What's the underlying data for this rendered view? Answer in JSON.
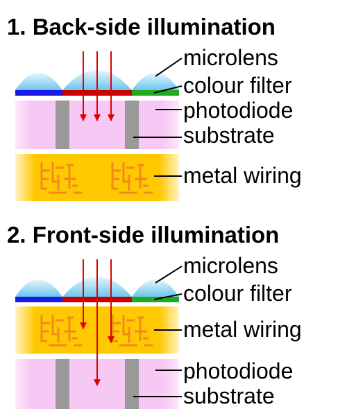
{
  "panels": [
    {
      "heading": "1. Back-side illumination",
      "labels": {
        "microlens": "microlens",
        "colour_filter": "colour filter",
        "photodiode": "photodiode",
        "substrate": "substrate",
        "metal_wiring": "metal wiring"
      }
    },
    {
      "heading": "2. Front-side illumination",
      "labels": {
        "microlens": "microlens",
        "colour_filter": "colour filter",
        "metal_wiring": "metal wiring",
        "photodiode": "photodiode",
        "substrate": "substrate"
      }
    }
  ],
  "colors": {
    "lens": "#7fd0f0",
    "lens_light": "#e6f6fd",
    "filter_blue": "#1a1ae6",
    "filter_red": "#cc0000",
    "filter_green": "#22aa22",
    "photodiode": "#f7c8f4",
    "photodiode_light": "#fde8fb",
    "substrate": "#999999",
    "wiring_gold": "#ffc800",
    "wiring_trace": "#f08a1a",
    "light_ray": "#e00000"
  }
}
